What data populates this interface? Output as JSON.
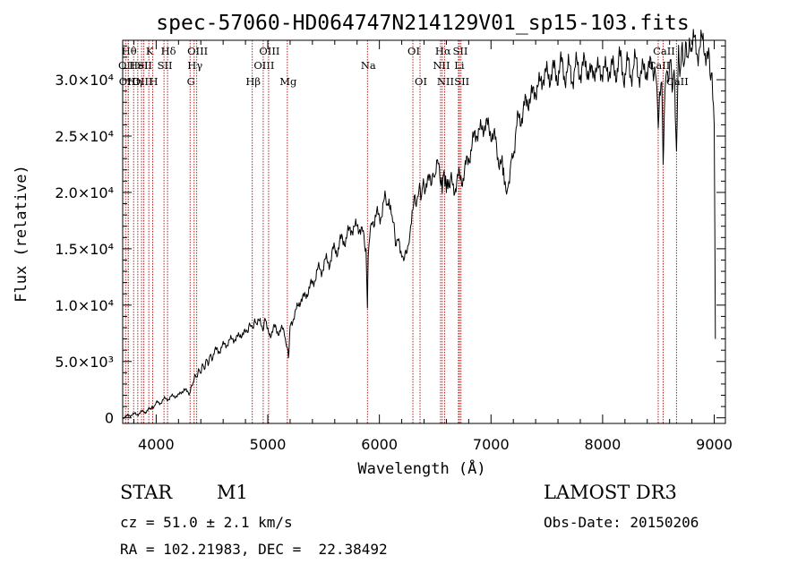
{
  "chart_data": {
    "type": "line",
    "title": "spec-57060-HD064747N214129V01_sp15-103.fits",
    "xlabel": "Wavelength (Å)",
    "ylabel": "Flux (relative)",
    "xlim": [
      3700,
      9100
    ],
    "ylim": [
      -500,
      33500
    ],
    "x_ticks": [
      {
        "value": 4000,
        "label": "4000"
      },
      {
        "value": 5000,
        "label": "5000"
      },
      {
        "value": 6000,
        "label": "6000"
      },
      {
        "value": 7000,
        "label": "7000"
      },
      {
        "value": 8000,
        "label": "8000"
      },
      {
        "value": 9000,
        "label": "9000"
      }
    ],
    "y_ticks": [
      {
        "value": 0,
        "label": "0"
      },
      {
        "value": 5000,
        "label": "5.0×10³"
      },
      {
        "value": 10000,
        "label": "1.0×10⁴"
      },
      {
        "value": 15000,
        "label": "1.5×10⁴"
      },
      {
        "value": 20000,
        "label": "2.0×10⁴"
      },
      {
        "value": 25000,
        "label": "2.5×10⁴"
      },
      {
        "value": 30000,
        "label": "3.0×10⁴"
      }
    ],
    "grid": false,
    "series": [
      {
        "x": [
          3700,
          3750,
          3800,
          3850,
          3900,
          3950,
          3970,
          4000,
          4050,
          4100,
          4150,
          4200,
          4250,
          4300,
          4340,
          4380,
          4420,
          4460,
          4500,
          4550,
          4600,
          4650,
          4700,
          4750,
          4800,
          4830,
          4860,
          4900,
          4950,
          4980,
          5000,
          5050,
          5100,
          5150,
          5170,
          5185,
          5200,
          5250,
          5300,
          5350,
          5400,
          5450,
          5500,
          5550,
          5600,
          5650,
          5700,
          5750,
          5800,
          5850,
          5880,
          5893,
          5900,
          5920,
          5950,
          6000,
          6050,
          6080,
          6100,
          6120,
          6150,
          6180,
          6200,
          6230,
          6260,
          6280,
          6300,
          6330,
          6360,
          6400,
          6450,
          6480,
          6500,
          6520,
          6550,
          6563,
          6580,
          6600,
          6620,
          6650,
          6700,
          6750,
          6800,
          6850,
          6900,
          6950,
          7000,
          7050,
          7100,
          7120,
          7140,
          7160,
          7200,
          7250,
          7300,
          7350,
          7400,
          7450,
          7500,
          7550,
          7600,
          7650,
          7700,
          7750,
          7800,
          7850,
          7900,
          7950,
          8000,
          8050,
          8100,
          8150,
          8200,
          8250,
          8300,
          8350,
          8400,
          8450,
          8480,
          8498,
          8510,
          8530,
          8542,
          8552,
          8570,
          8600,
          8640,
          8662,
          8680,
          8720,
          8760,
          8800,
          8850,
          8900,
          8950,
          8980,
          9000,
          9010
        ],
        "y": [
          0,
          200,
          300,
          400,
          600,
          700,
          1000,
          1200,
          1500,
          1700,
          1900,
          2000,
          2500,
          2200,
          3500,
          4000,
          4500,
          5000,
          5500,
          6000,
          6300,
          6800,
          7000,
          7300,
          7600,
          8000,
          8200,
          8500,
          8200,
          8400,
          7500,
          7800,
          7800,
          7600,
          6500,
          5500,
          8000,
          9500,
          10500,
          11000,
          12000,
          13000,
          13500,
          14000,
          14800,
          15500,
          16000,
          16800,
          17000,
          16500,
          15000,
          9800,
          14500,
          16500,
          17500,
          18000,
          19000,
          19500,
          18500,
          17000,
          16000,
          15000,
          14500,
          14200,
          15500,
          17000,
          18500,
          19500,
          20000,
          20500,
          21000,
          21500,
          21000,
          22500,
          21500,
          20500,
          21500,
          21000,
          21500,
          20500,
          21000,
          21500,
          23000,
          25000,
          25500,
          26000,
          25500,
          24000,
          22000,
          20500,
          19500,
          21000,
          24000,
          26500,
          27500,
          28500,
          29000,
          30000,
          30500,
          30500,
          30800,
          31000,
          30500,
          30800,
          31000,
          31200,
          30500,
          31000,
          30700,
          31000,
          30800,
          31500,
          30800,
          31000,
          31200,
          30500,
          31000,
          31300,
          30000,
          26500,
          28500,
          29500,
          21500,
          27000,
          30500,
          31000,
          30000,
          24000,
          31500,
          32000,
          32500,
          33000,
          32800,
          33200,
          31800,
          30500,
          26000,
          7000
        ]
      }
    ],
    "annotations": [
      {
        "x": 3726,
        "label": "OII",
        "row": 2
      },
      {
        "x": 3750,
        "label": "Hθ",
        "row": 1
      },
      {
        "x": 3750,
        "label": "OIII",
        "row": 3
      },
      {
        "x": 3798,
        "label": "Hη",
        "row": 3
      },
      {
        "x": 3835,
        "label": "HeI",
        "row": 2
      },
      {
        "x": 3869,
        "label": "OIII",
        "row": 3
      },
      {
        "x": 3889,
        "label": "SII",
        "row": 2
      },
      {
        "x": 3934,
        "label": "K",
        "row": 1
      },
      {
        "x": 3969,
        "label": "H",
        "row": 3
      },
      {
        "x": 4102,
        "label": "Hδ",
        "row": 1
      },
      {
        "x": 4070,
        "label": "SII",
        "row": 2
      },
      {
        "x": 4304,
        "label": "G",
        "row": 3
      },
      {
        "x": 4340,
        "label": "Hγ",
        "row": 2
      },
      {
        "x": 4363,
        "label": "OIII",
        "row": 1
      },
      {
        "x": 4861,
        "label": "Hβ",
        "row": 3
      },
      {
        "x": 4959,
        "label": "OIII",
        "row": 2
      },
      {
        "x": 5007,
        "label": "OIII",
        "row": 1
      },
      {
        "x": 5175,
        "label": "Mg",
        "row": 3
      },
      {
        "x": 5893,
        "label": "Na",
        "row": 2
      },
      {
        "x": 6300,
        "label": "OI",
        "row": 1
      },
      {
        "x": 6364,
        "label": "OI",
        "row": 3
      },
      {
        "x": 6548,
        "label": "NII",
        "row": 2
      },
      {
        "x": 6563,
        "label": "Hα",
        "row": 1
      },
      {
        "x": 6584,
        "label": "NII",
        "row": 3
      },
      {
        "x": 6708,
        "label": "Li",
        "row": 2
      },
      {
        "x": 6717,
        "label": "SII",
        "row": 1
      },
      {
        "x": 6731,
        "label": "SII",
        "row": 3
      },
      {
        "x": 8498,
        "label": "CaII",
        "row": 2
      },
      {
        "x": 8542,
        "label": "CaII",
        "row": 1
      },
      {
        "x": 8662,
        "label": "CaII",
        "row": 3
      }
    ]
  },
  "info": {
    "object_class": "STAR",
    "subclass": "M1",
    "survey": "LAMOST DR3",
    "redshift": "cz = 51.0 ± 2.1 km/s",
    "obs_date": "Obs-Date: 20150206",
    "coords": "RA = 102.21983, DEC =  22.38492"
  },
  "colors": {
    "line": "#000000",
    "marker_lines": "#b22222"
  }
}
